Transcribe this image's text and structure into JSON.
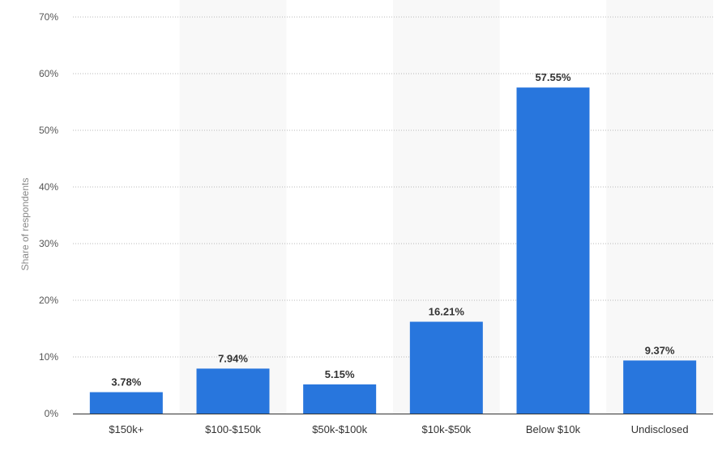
{
  "chart_data": {
    "type": "bar",
    "categories": [
      "$150k+",
      "$100-$150k",
      "$50k-$100k",
      "$10k-$50k",
      "Below $10k",
      "Undisclosed"
    ],
    "values": [
      3.78,
      7.94,
      5.15,
      16.21,
      57.55,
      9.37
    ],
    "data_labels": [
      "3.78%",
      "7.94%",
      "5.15%",
      "16.21%",
      "57.55%",
      "9.37%"
    ],
    "title": "",
    "xlabel": "",
    "ylabel": "Share of respondents",
    "ylim": [
      0,
      70
    ],
    "yticks": [
      0,
      10,
      20,
      30,
      40,
      50,
      60,
      70
    ],
    "ytick_labels": [
      "0%",
      "10%",
      "20%",
      "30%",
      "40%",
      "50%",
      "60%",
      "70%"
    ],
    "grid": true,
    "bar_color": "#2876dd",
    "band_color": "#f8f8f8"
  }
}
